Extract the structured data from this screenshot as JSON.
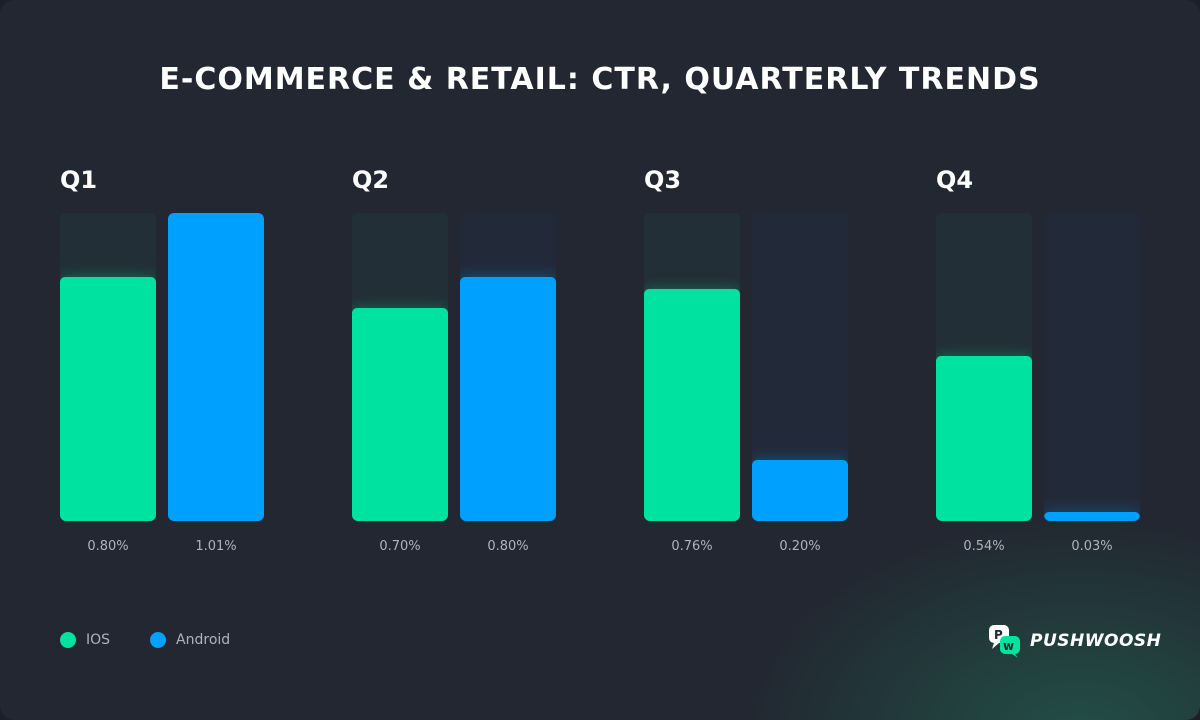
{
  "title": "E-COMMERCE & RETAIL: CTR, QUARTERLY TRENDS",
  "chart_data": {
    "type": "bar",
    "title": "E-COMMERCE & RETAIL: CTR, QUARTERLY TRENDS",
    "categories": [
      "Q1",
      "Q2",
      "Q3",
      "Q4"
    ],
    "unit": "%",
    "ylim": [
      0,
      1.01
    ],
    "grid": false,
    "legend_position": "bottom-left",
    "series": [
      {
        "name": "IOS",
        "color": "#00e3a0",
        "values": [
          0.8,
          0.7,
          0.76,
          0.54
        ],
        "labels": [
          "0.80%",
          "0.70%",
          "0.76%",
          "0.54%"
        ]
      },
      {
        "name": "Android",
        "color": "#00a0ff",
        "values": [
          1.01,
          0.8,
          0.2,
          0.03
        ],
        "labels": [
          "1.01%",
          "0.80%",
          "0.20%",
          "0.03%"
        ]
      }
    ]
  },
  "brand": {
    "name": "PUSHWOOSH",
    "logo_icon": "pushwoosh-logo-icon",
    "accent": "#00e3a0"
  }
}
